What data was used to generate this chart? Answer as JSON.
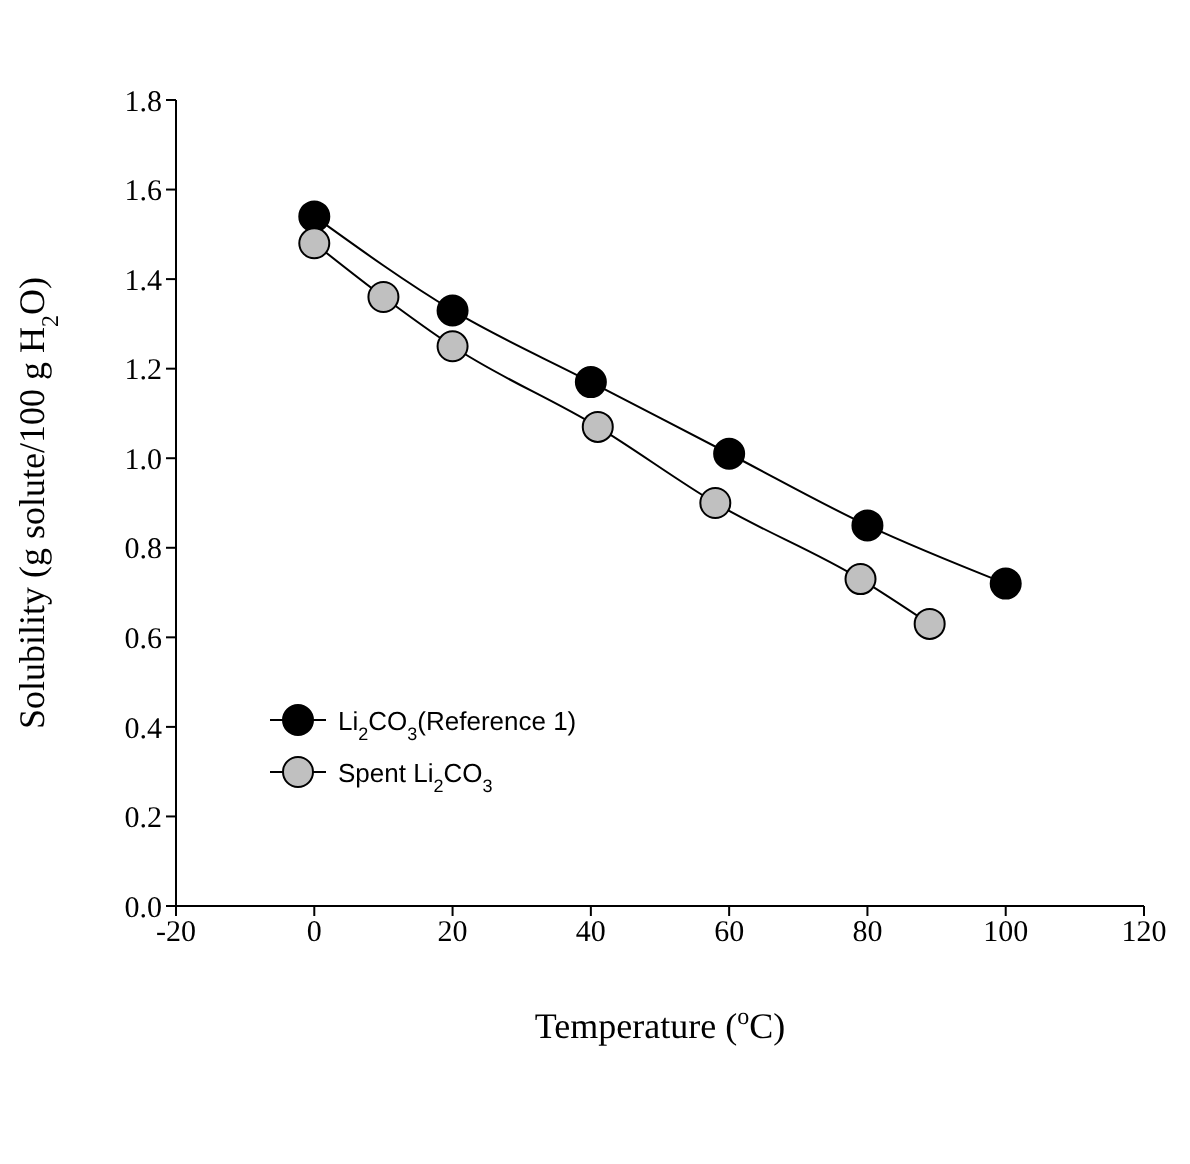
{
  "chart_data": {
    "type": "line",
    "xlabel": "Temperature ($^{o}$C)",
    "ylabel": "Solubility (g solute/100 g H$_{2}$O)",
    "xlim": [
      -20,
      120
    ],
    "xticks": [
      -20,
      0,
      20,
      40,
      60,
      80,
      100,
      120
    ],
    "ylim": [
      0,
      1.8
    ],
    "yticks": [
      {
        "value": 0,
        "label": "0.0"
      },
      0.2,
      0.4,
      0.6,
      0.8,
      {
        "value": 1,
        "label": "1.0"
      },
      1.2,
      1.4,
      1.6,
      1.8
    ],
    "grid": false,
    "legend": "left",
    "marker": "circle",
    "line_style": "solid",
    "series": [
      {
        "name": "Li$_{2}$CO$_{3}$(Reference 1)",
        "color": "#000000",
        "x": [
          0,
          20,
          40,
          60,
          80,
          100
        ],
        "values": [
          1.54,
          1.33,
          1.17,
          1.01,
          0.85,
          0.72
        ]
      },
      {
        "name": "Spent Li$_{2}$CO$_{3}$",
        "color": "#c0c0c0",
        "x": [
          0,
          10,
          20,
          41,
          58,
          79,
          89
        ],
        "values": [
          1.48,
          1.36,
          1.25,
          1.07,
          0.9,
          0.73,
          0.63
        ]
      }
    ]
  }
}
